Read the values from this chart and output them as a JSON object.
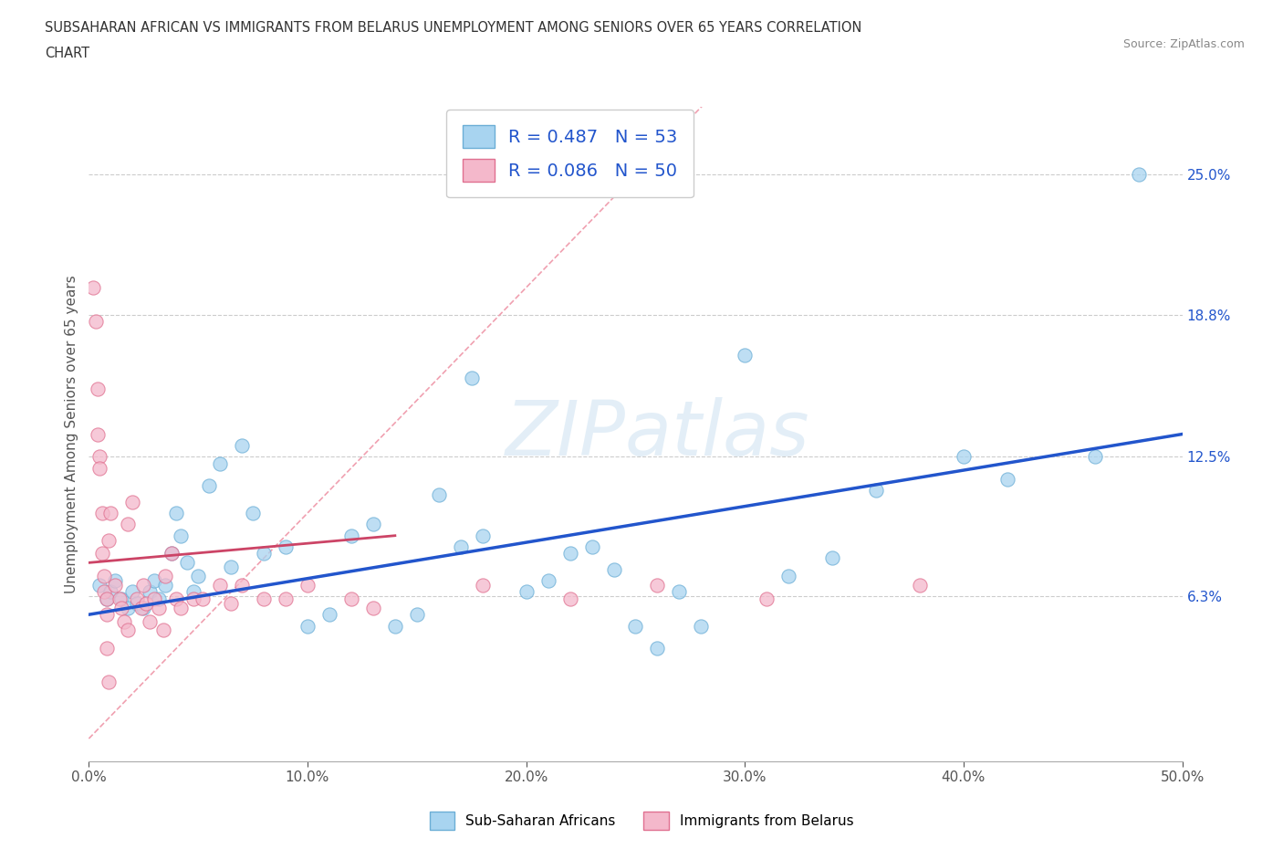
{
  "title_line1": "SUBSAHARAN AFRICAN VS IMMIGRANTS FROM BELARUS UNEMPLOYMENT AMONG SENIORS OVER 65 YEARS CORRELATION",
  "title_line2": "CHART",
  "source": "Source: ZipAtlas.com",
  "ylabel": "Unemployment Among Seniors over 65 years",
  "xlim": [
    0.0,
    0.5
  ],
  "ylim": [
    -0.01,
    0.28
  ],
  "xticks": [
    0.0,
    0.1,
    0.2,
    0.3,
    0.4,
    0.5
  ],
  "xticklabels": [
    "0.0%",
    "10.0%",
    "20.0%",
    "30.0%",
    "40.0%",
    "50.0%"
  ],
  "ytick_values": [
    0.063,
    0.125,
    0.188,
    0.25
  ],
  "ytick_labels": [
    "6.3%",
    "12.5%",
    "18.8%",
    "25.0%"
  ],
  "r_blue": 0.487,
  "n_blue": 53,
  "r_pink": 0.086,
  "n_pink": 50,
  "blue_color": "#a8d4f0",
  "blue_edge": "#6baed6",
  "pink_color": "#f4b8cb",
  "pink_edge": "#e07090",
  "trend_blue_color": "#2255cc",
  "trend_pink_color": "#cc4466",
  "diagonal_color": "#f0a0b0",
  "legend_label_blue": "Sub-Saharan Africans",
  "legend_label_pink": "Immigrants from Belarus",
  "watermark": "ZIPatlas",
  "blue_x": [
    0.005,
    0.008,
    0.01,
    0.012,
    0.015,
    0.018,
    0.02,
    0.022,
    0.025,
    0.028,
    0.03,
    0.032,
    0.035,
    0.038,
    0.04,
    0.042,
    0.045,
    0.048,
    0.05,
    0.055,
    0.06,
    0.065,
    0.07,
    0.075,
    0.08,
    0.09,
    0.1,
    0.11,
    0.12,
    0.13,
    0.14,
    0.15,
    0.16,
    0.17,
    0.175,
    0.18,
    0.2,
    0.21,
    0.22,
    0.23,
    0.24,
    0.25,
    0.26,
    0.27,
    0.28,
    0.3,
    0.32,
    0.34,
    0.36,
    0.4,
    0.42,
    0.46,
    0.48
  ],
  "blue_y": [
    0.068,
    0.062,
    0.065,
    0.07,
    0.062,
    0.058,
    0.065,
    0.06,
    0.058,
    0.065,
    0.07,
    0.062,
    0.068,
    0.082,
    0.1,
    0.09,
    0.078,
    0.065,
    0.072,
    0.112,
    0.122,
    0.076,
    0.13,
    0.1,
    0.082,
    0.085,
    0.05,
    0.055,
    0.09,
    0.095,
    0.05,
    0.055,
    0.108,
    0.085,
    0.16,
    0.09,
    0.065,
    0.07,
    0.082,
    0.085,
    0.075,
    0.05,
    0.04,
    0.065,
    0.05,
    0.17,
    0.072,
    0.08,
    0.11,
    0.125,
    0.115,
    0.125,
    0.25
  ],
  "pink_x": [
    0.002,
    0.003,
    0.004,
    0.004,
    0.005,
    0.005,
    0.006,
    0.006,
    0.007,
    0.007,
    0.008,
    0.008,
    0.008,
    0.009,
    0.009,
    0.01,
    0.012,
    0.014,
    0.015,
    0.016,
    0.018,
    0.018,
    0.02,
    0.022,
    0.024,
    0.025,
    0.026,
    0.028,
    0.03,
    0.032,
    0.034,
    0.035,
    0.038,
    0.04,
    0.042,
    0.048,
    0.052,
    0.06,
    0.065,
    0.07,
    0.08,
    0.09,
    0.1,
    0.12,
    0.13,
    0.18,
    0.22,
    0.26,
    0.31,
    0.38
  ],
  "pink_y": [
    0.2,
    0.185,
    0.155,
    0.135,
    0.125,
    0.12,
    0.1,
    0.082,
    0.072,
    0.065,
    0.062,
    0.055,
    0.04,
    0.025,
    0.088,
    0.1,
    0.068,
    0.062,
    0.058,
    0.052,
    0.048,
    0.095,
    0.105,
    0.062,
    0.058,
    0.068,
    0.06,
    0.052,
    0.062,
    0.058,
    0.048,
    0.072,
    0.082,
    0.062,
    0.058,
    0.062,
    0.062,
    0.068,
    0.06,
    0.068,
    0.062,
    0.062,
    0.068,
    0.062,
    0.058,
    0.068,
    0.062,
    0.068,
    0.062,
    0.068
  ],
  "trend_blue_x0": 0.0,
  "trend_blue_y0": 0.055,
  "trend_blue_x1": 0.5,
  "trend_blue_y1": 0.135,
  "trend_pink_x0": 0.0,
  "trend_pink_y0": 0.078,
  "trend_pink_x1": 0.14,
  "trend_pink_y1": 0.09
}
